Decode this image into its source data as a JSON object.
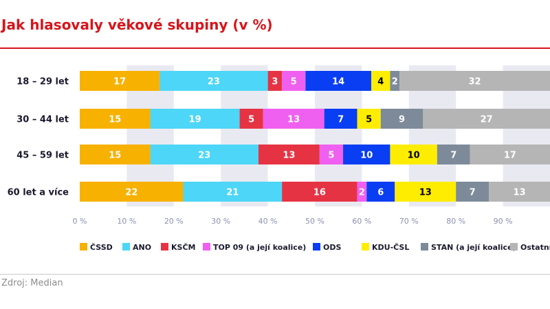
{
  "source": "Zdroj: Median",
  "chart_data": {
    "type": "bar",
    "orientation": "horizontal",
    "stacked": true,
    "title": "Jak hlasovaly věkové skupiny (v %)",
    "categories": [
      "18 – 29 let",
      "30 – 44 let",
      "45 – 59 let",
      "60 let a více"
    ],
    "series": [
      {
        "name": "ČSSD",
        "color": "#f7b100",
        "label_color": "#ffffff",
        "values": [
          17,
          15,
          15,
          22
        ]
      },
      {
        "name": "ANO",
        "color": "#4dd6f7",
        "label_color": "#ffffff",
        "values": [
          23,
          19,
          23,
          21
        ]
      },
      {
        "name": "KSČM",
        "color": "#e63344",
        "label_color": "#ffffff",
        "values": [
          3,
          5,
          13,
          16
        ]
      },
      {
        "name": "TOP 09 (a její koalice)",
        "color": "#f060f0",
        "label_color": "#ffffff",
        "values": [
          5,
          13,
          5,
          2
        ]
      },
      {
        "name": "ODS",
        "color": "#0a3ef2",
        "label_color": "#ffffff",
        "values": [
          14,
          7,
          10,
          6
        ]
      },
      {
        "name": "KDU-ČSL",
        "color": "#ffed00",
        "label_color": "#000000",
        "values": [
          4,
          5,
          10,
          13
        ]
      },
      {
        "name": "STAN (a její koalice)",
        "color": "#7d8a99",
        "label_color": "#ffffff",
        "values": [
          2,
          9,
          7,
          7
        ]
      },
      {
        "name": "Ostatní",
        "color": "#b5b5b5",
        "label_color": "#ffffff",
        "values": [
          32,
          27,
          17,
          13
        ]
      }
    ],
    "x_ticks": [
      "0 %",
      "10 %",
      "20 %",
      "30 %",
      "40 %",
      "50 %",
      "60 %",
      "70 %",
      "80 %",
      "90 %"
    ],
    "xlim": [
      0,
      100
    ],
    "legend_position": "bottom",
    "grid": "alternating vertical bands"
  }
}
